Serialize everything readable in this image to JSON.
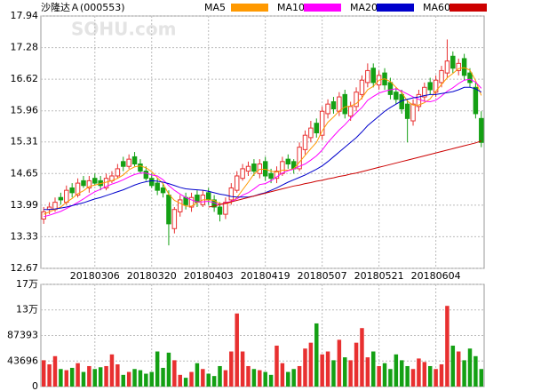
{
  "chart_data": [
    {
      "type": "candlestick",
      "title": "沙隆达Ａ(000553)",
      "watermark": "SOHU.com",
      "categories": [
        null,
        null,
        null,
        null,
        null,
        null,
        null,
        null,
        null,
        "20180306",
        null,
        null,
        null,
        null,
        null,
        null,
        null,
        null,
        null,
        "20180320",
        null,
        null,
        null,
        null,
        null,
        null,
        null,
        null,
        null,
        "20180403",
        null,
        null,
        null,
        null,
        null,
        null,
        null,
        null,
        null,
        "20180419",
        null,
        null,
        null,
        null,
        null,
        null,
        null,
        null,
        null,
        "20180507",
        null,
        null,
        null,
        null,
        null,
        null,
        null,
        null,
        null,
        "20180521",
        null,
        null,
        null,
        null,
        null,
        null,
        null,
        null,
        null,
        "20180604",
        null,
        null,
        null,
        null,
        null,
        null,
        null,
        null
      ],
      "open": [
        13.7,
        13.9,
        13.9,
        14.15,
        14.05,
        14.35,
        14.2,
        14.5,
        14.35,
        14.55,
        14.5,
        14.35,
        14.5,
        14.6,
        14.9,
        14.8,
        15.0,
        14.85,
        14.7,
        14.55,
        14.45,
        14.35,
        14.2,
        13.5,
        13.85,
        14.15,
        13.95,
        14.2,
        14.0,
        14.25,
        14.1,
        13.95,
        13.8,
        14.1,
        14.3,
        14.55,
        14.7,
        14.85,
        14.65,
        14.9,
        14.65,
        14.55,
        14.65,
        14.95,
        14.9,
        14.75,
        15.15,
        15.4,
        15.7,
        15.45,
        15.9,
        16.15,
        15.95,
        16.3,
        15.85,
        16.05,
        16.3,
        16.55,
        16.85,
        16.5,
        16.75,
        16.55,
        16.35,
        16.3,
        16.1,
        15.75,
        16.05,
        16.25,
        16.55,
        16.35,
        16.55,
        16.75,
        17.1,
        16.8,
        17.05,
        16.75,
        16.45,
        15.8
      ],
      "high": [
        13.95,
        14.05,
        14.15,
        14.25,
        14.4,
        14.45,
        14.55,
        14.6,
        14.6,
        14.65,
        14.6,
        14.65,
        14.7,
        14.85,
        15.0,
        15.05,
        15.1,
        14.95,
        14.8,
        14.65,
        14.55,
        14.45,
        14.3,
        13.95,
        14.2,
        14.25,
        14.25,
        14.3,
        14.3,
        14.35,
        14.2,
        14.05,
        14.15,
        14.45,
        14.7,
        14.85,
        14.9,
        14.95,
        14.95,
        15.0,
        14.75,
        14.8,
        15.0,
        15.05,
        14.95,
        15.3,
        15.55,
        15.75,
        15.8,
        16.05,
        16.2,
        16.25,
        16.35,
        16.4,
        16.15,
        16.45,
        16.7,
        16.95,
        16.95,
        16.8,
        16.85,
        16.65,
        16.45,
        16.4,
        16.2,
        16.2,
        16.4,
        16.55,
        16.65,
        16.7,
        16.9,
        17.45,
        17.2,
        17.05,
        17.15,
        16.85,
        16.55,
        15.95
      ],
      "low": [
        13.6,
        13.8,
        13.85,
        14.0,
        14.0,
        14.15,
        14.15,
        14.35,
        14.25,
        14.4,
        14.3,
        14.3,
        14.45,
        14.55,
        14.7,
        14.75,
        14.8,
        14.65,
        14.5,
        14.35,
        14.2,
        14.15,
        13.15,
        13.4,
        13.75,
        13.9,
        13.85,
        13.95,
        13.95,
        14.0,
        13.85,
        13.65,
        13.7,
        14.0,
        14.25,
        14.5,
        14.6,
        14.6,
        14.55,
        14.5,
        14.45,
        14.45,
        14.6,
        14.75,
        14.65,
        14.7,
        15.05,
        15.3,
        15.4,
        15.35,
        15.8,
        15.9,
        15.85,
        15.8,
        15.75,
        15.95,
        16.2,
        16.45,
        16.45,
        16.4,
        16.4,
        16.2,
        16.1,
        15.9,
        15.3,
        15.65,
        15.95,
        16.15,
        16.3,
        16.25,
        16.45,
        16.65,
        16.75,
        16.7,
        16.6,
        16.45,
        15.8,
        15.2
      ],
      "close": [
        13.85,
        13.95,
        14.05,
        14.1,
        14.3,
        14.25,
        14.45,
        14.4,
        14.5,
        14.45,
        14.4,
        14.55,
        14.6,
        14.75,
        14.8,
        14.95,
        14.85,
        14.7,
        14.55,
        14.4,
        14.3,
        14.25,
        13.6,
        13.9,
        14.1,
        14.0,
        14.15,
        14.05,
        14.2,
        14.1,
        13.95,
        13.8,
        14.05,
        14.35,
        14.6,
        14.75,
        14.8,
        14.7,
        14.85,
        14.6,
        14.55,
        14.7,
        14.9,
        14.85,
        14.75,
        15.2,
        15.45,
        15.6,
        15.5,
        15.95,
        16.1,
        16.0,
        16.25,
        15.9,
        16.05,
        16.35,
        16.6,
        16.8,
        16.55,
        16.7,
        16.5,
        16.3,
        16.2,
        16.0,
        15.8,
        16.1,
        16.3,
        16.45,
        16.4,
        16.6,
        16.8,
        17.0,
        16.85,
        16.95,
        16.7,
        16.55,
        15.9,
        15.3
      ],
      "up_color": "#e83030",
      "down_color": "#14a014",
      "series": [
        {
          "name": "MA5",
          "color": "#ff9900",
          "values": [
            13.8,
            13.85,
            13.9,
            13.95,
            14.05,
            14.13,
            14.23,
            14.29,
            14.38,
            14.41,
            14.44,
            14.47,
            14.5,
            14.55,
            14.62,
            14.73,
            14.79,
            14.81,
            14.77,
            14.69,
            14.56,
            14.44,
            14.22,
            14.09,
            14.03,
            13.97,
            13.97,
            14.04,
            14.1,
            14.1,
            14.09,
            14.02,
            14.02,
            14.05,
            14.15,
            14.31,
            14.47,
            14.64,
            14.74,
            14.74,
            14.7,
            14.68,
            14.72,
            14.72,
            14.75,
            14.89,
            15.03,
            15.17,
            15.3,
            15.54,
            15.72,
            15.83,
            15.96,
            16.04,
            16.06,
            16.11,
            16.23,
            16.4,
            16.47,
            16.6,
            16.63,
            16.57,
            16.45,
            16.34,
            16.16,
            16.08,
            16.08,
            16.13,
            16.21,
            16.37,
            16.51,
            16.65,
            16.74,
            16.84,
            16.86,
            16.81,
            16.59,
            16.28
          ]
        },
        {
          "name": "MA10",
          "color": "#ff00ff",
          "values": [
            13.75,
            13.78,
            13.82,
            13.86,
            13.92,
            13.98,
            14.05,
            14.12,
            14.2,
            14.27,
            14.32,
            14.38,
            14.43,
            14.47,
            14.52,
            14.58,
            14.63,
            14.66,
            14.66,
            14.62,
            14.6,
            14.52,
            14.4,
            14.3,
            14.22,
            14.15,
            14.1,
            14.06,
            14.06,
            14.07,
            14.04,
            14.0,
            14.04,
            14.07,
            14.12,
            14.2,
            14.25,
            14.33,
            14.42,
            14.44,
            14.5,
            14.58,
            14.66,
            14.71,
            14.74,
            14.8,
            14.85,
            14.93,
            15.02,
            15.14,
            15.3,
            15.43,
            15.56,
            15.67,
            15.8,
            15.92,
            16.03,
            16.18,
            16.26,
            16.33,
            16.37,
            16.4,
            16.42,
            16.37,
            16.31,
            16.25,
            16.2,
            16.16,
            16.15,
            16.18,
            16.27,
            16.37,
            16.44,
            16.53,
            16.6,
            16.62,
            16.56,
            16.43
          ]
        },
        {
          "name": "MA20",
          "color": "#0000cc",
          "values": [
            13.9,
            13.9,
            13.91,
            13.93,
            13.95,
            13.98,
            14.01,
            14.04,
            14.08,
            14.12,
            14.15,
            14.19,
            14.23,
            14.27,
            14.31,
            14.36,
            14.41,
            14.45,
            14.48,
            14.5,
            14.49,
            14.47,
            14.44,
            14.4,
            14.36,
            14.33,
            14.32,
            14.31,
            14.3,
            14.28,
            14.25,
            14.22,
            14.2,
            14.17,
            14.16,
            14.16,
            14.16,
            14.18,
            14.22,
            14.25,
            14.3,
            14.35,
            14.41,
            14.47,
            14.52,
            14.57,
            14.62,
            14.68,
            14.74,
            14.81,
            14.9,
            15.0,
            15.1,
            15.2,
            15.3,
            15.4,
            15.52,
            15.65,
            15.75,
            15.85,
            15.95,
            16.03,
            16.1,
            16.17,
            16.2,
            16.23,
            16.25,
            16.28,
            16.3,
            16.3,
            16.32,
            16.34,
            16.36,
            16.4,
            16.45,
            16.45,
            16.42,
            16.35
          ]
        },
        {
          "name": "MA60",
          "color": "#cc0000",
          "values": [
            null,
            null,
            null,
            null,
            null,
            null,
            null,
            null,
            null,
            null,
            null,
            null,
            null,
            null,
            null,
            null,
            null,
            null,
            null,
            null,
            null,
            null,
            null,
            null,
            null,
            null,
            null,
            null,
            null,
            13.95,
            13.97,
            14.0,
            14.03,
            14.06,
            14.09,
            14.12,
            14.15,
            14.18,
            14.21,
            14.24,
            14.27,
            14.3,
            14.33,
            14.36,
            14.39,
            14.41,
            14.44,
            14.46,
            14.49,
            14.51,
            14.54,
            14.56,
            14.59,
            14.61,
            14.64,
            14.66,
            14.69,
            14.72,
            14.75,
            14.78,
            14.81,
            14.84,
            14.87,
            14.9,
            14.93,
            14.96,
            14.99,
            15.02,
            15.05,
            15.08,
            15.11,
            15.14,
            15.17,
            15.2,
            15.23,
            15.26,
            15.29,
            15.33
          ]
        }
      ],
      "ylim": [
        12.67,
        17.94
      ],
      "yticks": [
        12.67,
        13.33,
        13.99,
        14.65,
        15.31,
        15.96,
        16.62,
        17.28,
        17.94
      ],
      "grid": true
    },
    {
      "type": "bar",
      "values": [
        45000,
        38000,
        52000,
        30000,
        28000,
        32000,
        40000,
        25000,
        35000,
        30000,
        33000,
        35000,
        55000,
        38000,
        20000,
        25000,
        30000,
        28000,
        22000,
        25000,
        60000,
        32000,
        58000,
        45000,
        20000,
        15000,
        25000,
        40000,
        30000,
        22000,
        18000,
        35000,
        28000,
        60000,
        125000,
        60000,
        35000,
        30000,
        28000,
        25000,
        20000,
        70000,
        40000,
        25000,
        30000,
        35000,
        65000,
        75000,
        108000,
        55000,
        60000,
        45000,
        80000,
        50000,
        45000,
        75000,
        100000,
        50000,
        60000,
        35000,
        40000,
        30000,
        55000,
        45000,
        35000,
        30000,
        48000,
        42000,
        35000,
        30000,
        38000,
        138000,
        70000,
        60000,
        45000,
        65000,
        52000,
        30000
      ],
      "ylim": [
        0,
        174786
      ],
      "yticks": [
        0,
        43696,
        87393,
        {
          "value": 131090,
          "label": "13万"
        },
        {
          "value": 174786,
          "label": "17万"
        }
      ],
      "grid": true
    }
  ]
}
